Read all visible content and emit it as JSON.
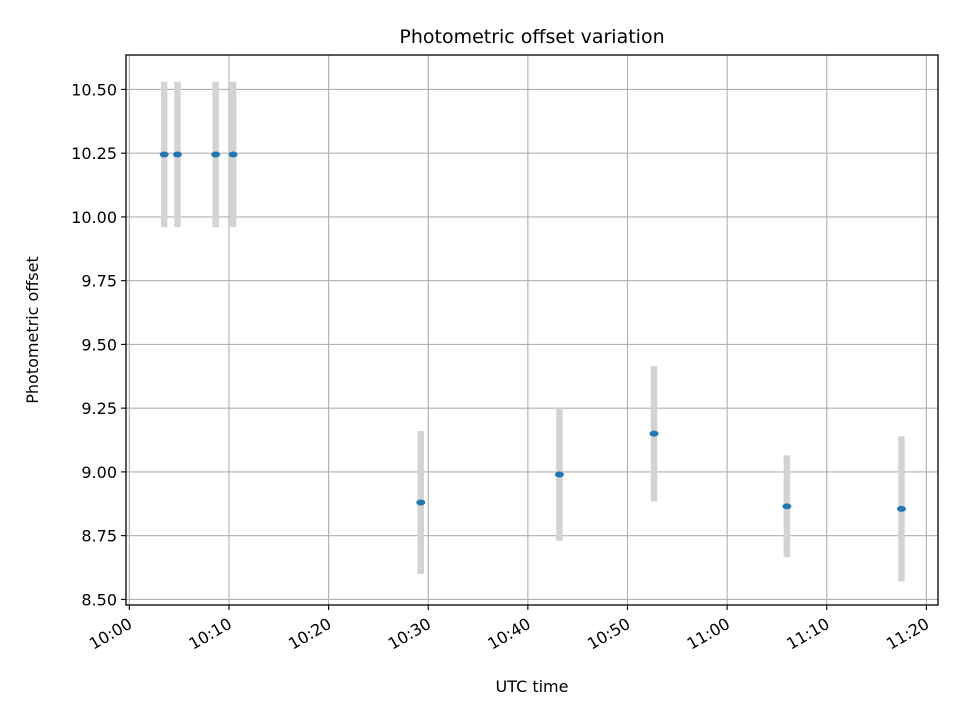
{
  "chart_data": {
    "type": "scatter",
    "title": "Photometric offset variation",
    "xlabel": "UTC time",
    "ylabel": "Photometric offset",
    "x_format": "HH:MM",
    "xlim": [
      "09:59:40",
      "11:21:10"
    ],
    "ylim": [
      8.478,
      10.635
    ],
    "grid": true,
    "x_ticks": [
      "10:00",
      "10:10",
      "10:20",
      "10:30",
      "10:40",
      "10:50",
      "11:00",
      "11:10",
      "11:20"
    ],
    "y_ticks": [
      "8.50",
      "8.75",
      "9.00",
      "9.25",
      "9.50",
      "9.75",
      "10.00",
      "10.25",
      "10.50"
    ],
    "colors": {
      "point": "#1f77b4",
      "errorbar": "#d3d3d3",
      "grid": "#b0b0b0"
    },
    "series": [
      {
        "points": [
          {
            "x": "10:03:30",
            "y": 10.245,
            "err": 0.285
          },
          {
            "x": "10:04:50",
            "y": 10.245,
            "err": 0.285
          },
          {
            "x": "10:08:40",
            "y": 10.245,
            "err": 0.285
          },
          {
            "x": "10:10:25",
            "y": 10.245,
            "err": 0.285
          },
          {
            "x": "10:29:15",
            "y": 8.88,
            "err": 0.28
          },
          {
            "x": "10:43:10",
            "y": 8.99,
            "err": 0.26
          },
          {
            "x": "10:52:40",
            "y": 9.15,
            "err": 0.265
          },
          {
            "x": "11:06:00",
            "y": 8.865,
            "err": 0.2
          },
          {
            "x": "11:17:30",
            "y": 8.855,
            "err": 0.285
          }
        ]
      }
    ]
  }
}
